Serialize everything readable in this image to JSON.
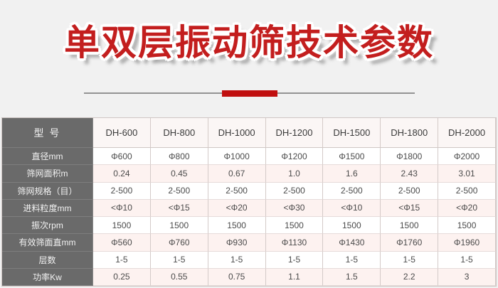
{
  "title": "单双层振动筛技术参数",
  "colors": {
    "accent_red": "#c31e1e",
    "divider_bar_red": "#c00f0f",
    "label_column_bg": "#6a6a6a",
    "alt_row_bg": "#fdf2f0",
    "page_bg": "#f1f1f1"
  },
  "table": {
    "corner_label": "型 号",
    "models": [
      "DH-600",
      "DH-800",
      "DH-1000",
      "DH-1200",
      "DH-1500",
      "DH-1800",
      "DH-2000"
    ],
    "rows": [
      {
        "label": "直径mm",
        "values": [
          "Φ600",
          "Φ800",
          "Φ1000",
          "Φ1200",
          "Φ1500",
          "Φ1800",
          "Φ2000"
        ]
      },
      {
        "label": "筛网面积m",
        "values": [
          "0.24",
          "0.45",
          "0.67",
          "1.0",
          "1.6",
          "2.43",
          "3.01"
        ]
      },
      {
        "label": "筛网规格（目）",
        "values": [
          "2-500",
          "2-500",
          "2-500",
          "2-500",
          "2-500",
          "2-500",
          "2-500"
        ]
      },
      {
        "label": "进料粒度mm",
        "values": [
          "<Φ10",
          "<Φ15",
          "<Φ20",
          "<Φ30",
          "<Φ10",
          "<Φ15",
          "<Φ20"
        ]
      },
      {
        "label": "振次rpm",
        "values": [
          "1500",
          "1500",
          "1500",
          "1500",
          "1500",
          "1500",
          "1500"
        ]
      },
      {
        "label": "有效筛面直mm",
        "values": [
          "Φ560",
          "Φ760",
          "Φ930",
          "Φ1130",
          "Φ1430",
          "Φ1760",
          "Φ1960"
        ]
      },
      {
        "label": "层数",
        "values": [
          "1-5",
          "1-5",
          "1-5",
          "1-5",
          "1-5",
          "1-5",
          "1-5"
        ]
      },
      {
        "label": "功率Kw",
        "values": [
          "0.25",
          "0.55",
          "0.75",
          "1.1",
          "1.5",
          "2.2",
          "3"
        ]
      }
    ]
  }
}
